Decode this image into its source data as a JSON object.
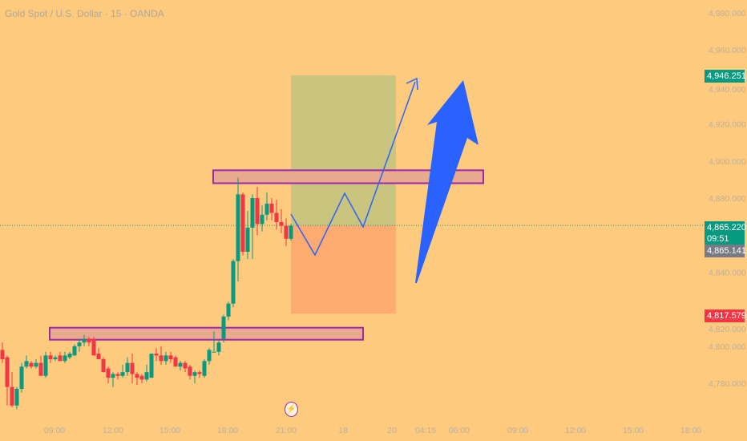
{
  "header": {
    "title": "Gold Spot / U.S. Dollar · 15 · OANDA"
  },
  "price_tags": {
    "target": {
      "value": "4,946.251",
      "color": "#089981"
    },
    "last": {
      "value": "4,865.220",
      "countdown": "09:51",
      "color": "#089981"
    },
    "bid": {
      "value": "4,865.141",
      "color": "#787b86"
    },
    "stop": {
      "value": "4,817.579",
      "color": "#f23645"
    }
  },
  "icons": {
    "event": "lightning-icon"
  },
  "chart_data": {
    "type": "candlestick",
    "title": "Gold Spot / U.S. Dollar · 15 · OANDA",
    "ylim": [
      4770,
      4985
    ],
    "y_ticks": [
      "4,980.000",
      "4,960.000",
      "4,940.000",
      "4,920.000",
      "4,900.000",
      "4,880.000",
      "4,840.000",
      "4,820.000",
      "4,800.000",
      "4,780.000"
    ],
    "y_tick_values": [
      4980,
      4960,
      4940,
      4920,
      4900,
      4880,
      4840,
      4820,
      4800,
      4780
    ],
    "x_ticks": [
      "09:00",
      "12:00",
      "15:00",
      "18:00",
      "21:00",
      "18",
      "20",
      "04:15",
      "06:00",
      "09:00",
      "12:00",
      "15:00",
      "18:00"
    ],
    "colors": {
      "up": "#089981",
      "down": "#f23645",
      "drawing": "#2962ff",
      "zone": "#9c27b0"
    },
    "candles": [
      [
        4798,
        4802,
        4791,
        4793
      ],
      [
        4794,
        4795,
        4768,
        4778
      ],
      [
        4778,
        4786,
        4767,
        4768
      ],
      [
        4768,
        4778,
        4766,
        4777
      ],
      [
        4777,
        4791,
        4775,
        4789
      ],
      [
        4789,
        4795,
        4788,
        4792
      ],
      [
        4791,
        4792,
        4788,
        4789
      ],
      [
        4789,
        4793,
        4788,
        4791
      ],
      [
        4791,
        4795,
        4784,
        4784
      ],
      [
        4784,
        4797,
        4783,
        4795
      ],
      [
        4795,
        4797,
        4791,
        4793
      ],
      [
        4793,
        4795,
        4792,
        4794
      ],
      [
        4795,
        4797,
        4792,
        4792
      ],
      [
        4792,
        4797,
        4791,
        4795
      ],
      [
        4794,
        4797,
        4793,
        4796
      ],
      [
        4795,
        4801,
        4795,
        4800
      ],
      [
        4800,
        4804,
        4797,
        4802
      ],
      [
        4802,
        4806,
        4800,
        4804
      ],
      [
        4804,
        4805,
        4800,
        4802
      ],
      [
        4804,
        4805,
        4795,
        4795
      ],
      [
        4796,
        4799,
        4793,
        4793
      ],
      [
        4793,
        4794,
        4786,
        4786
      ],
      [
        4788,
        4789,
        4780,
        4783
      ],
      [
        4783,
        4786,
        4778,
        4785
      ],
      [
        4785,
        4786,
        4782,
        4784
      ],
      [
        4784,
        4790,
        4783,
        4786
      ],
      [
        4786,
        4794,
        4784,
        4791
      ],
      [
        4791,
        4796,
        4780,
        4785
      ],
      [
        4785,
        4786,
        4779,
        4783
      ],
      [
        4784,
        4785,
        4780,
        4782
      ],
      [
        4782,
        4790,
        4781,
        4786
      ],
      [
        4783,
        4796,
        4783,
        4796
      ],
      [
        4796,
        4799,
        4792,
        4795
      ],
      [
        4795,
        4800,
        4790,
        4792
      ],
      [
        4792,
        4797,
        4790,
        4795
      ],
      [
        4795,
        4797,
        4791,
        4793
      ],
      [
        4794,
        4795,
        4789,
        4789
      ],
      [
        4789,
        4792,
        4787,
        4791
      ],
      [
        4791,
        4792,
        4786,
        4788
      ],
      [
        4789,
        4790,
        4782,
        4784
      ],
      [
        4784,
        4787,
        4780,
        4786
      ],
      [
        4786,
        4787,
        4783,
        4785
      ],
      [
        4784,
        4793,
        4783,
        4792
      ],
      [
        4792,
        4799,
        4790,
        4798
      ],
      [
        4797,
        4808,
        4797,
        4797
      ],
      [
        4797,
        4803,
        4795,
        4802
      ],
      [
        4804,
        4817,
        4802,
        4816
      ],
      [
        4816,
        4824,
        4814,
        4823
      ],
      [
        4823,
        4847,
        4821,
        4846
      ],
      [
        4846,
        4891,
        4835,
        4882
      ],
      [
        4882,
        4883,
        4849,
        4851
      ],
      [
        4851,
        4873,
        4847,
        4864
      ],
      [
        4864,
        4882,
        4847,
        4880
      ],
      [
        4880,
        4886,
        4860,
        4866
      ],
      [
        4866,
        4876,
        4862,
        4871
      ],
      [
        4871,
        4883,
        4868,
        4877
      ],
      [
        4877,
        4880,
        4868,
        4872
      ],
      [
        4872,
        4879,
        4863,
        4867
      ],
      [
        4867,
        4874,
        4861,
        4865
      ],
      [
        4865,
        4869,
        4854,
        4858
      ],
      [
        4858,
        4866,
        4857,
        4865
      ]
    ],
    "last_price": 4865.22,
    "position": {
      "target": 4946.251,
      "entry": 4865.22,
      "stop": 4817.579
    },
    "zones": [
      {
        "top": 4895,
        "bottom": 4888
      },
      {
        "top": 4810,
        "bottom": 4803.5
      }
    ]
  }
}
